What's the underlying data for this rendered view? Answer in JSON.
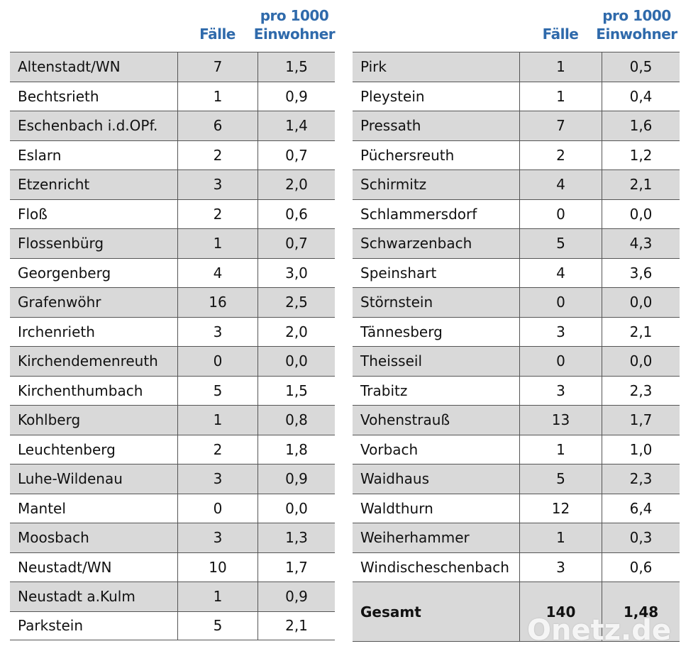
{
  "left": {
    "header": {
      "col1": "Fälle",
      "col2_line1": "pro 1000",
      "col2_line2": "Einwohner"
    },
    "rows": [
      [
        "Altenstadt/WN",
        7,
        "1,5"
      ],
      [
        "Bechtsrieth",
        1,
        "0,9"
      ],
      [
        "Eschenbach i.d.OPf.",
        6,
        "1,4"
      ],
      [
        "Eslarn",
        2,
        "0,7"
      ],
      [
        "Etzenricht",
        3,
        "2,0"
      ],
      [
        "Floß",
        2,
        "0,6"
      ],
      [
        "Flossenbürg",
        1,
        "0,7"
      ],
      [
        "Georgenberg",
        4,
        "3,0"
      ],
      [
        "Grafenwöhr",
        16,
        "2,5"
      ],
      [
        "Irchenrieth",
        3,
        "2,0"
      ],
      [
        "Kirchendemenreuth",
        0,
        "0,0"
      ],
      [
        "Kirchenthumbach",
        5,
        "1,5"
      ],
      [
        "Kohlberg",
        1,
        "0,8"
      ],
      [
        "Leuchtenberg",
        2,
        "1,8"
      ],
      [
        "Luhe-Wildenau",
        3,
        "0,9"
      ],
      [
        "Mantel",
        0,
        "0,0"
      ],
      [
        "Moosbach",
        3,
        "1,3"
      ],
      [
        "Neustadt/WN",
        10,
        "1,7"
      ],
      [
        "Neustadt a.Kulm",
        1,
        "0,9"
      ],
      [
        "Parkstein",
        5,
        "2,1"
      ]
    ]
  },
  "right": {
    "header": {
      "col1": "Fälle",
      "col2_line1": "pro 1000",
      "col2_line2": "Einwohner"
    },
    "rows": [
      [
        "Pirk",
        1,
        "0,5"
      ],
      [
        "Pleystein",
        1,
        "0,4"
      ],
      [
        "Pressath",
        7,
        "1,6"
      ],
      [
        "Püchersreuth",
        2,
        "1,2"
      ],
      [
        "Schirmitz",
        4,
        "2,1"
      ],
      [
        "Schlammersdorf",
        0,
        "0,0"
      ],
      [
        "Schwarzenbach",
        5,
        "4,3"
      ],
      [
        "Speinshart",
        4,
        "3,6"
      ],
      [
        "Störnstein",
        0,
        "0,0"
      ],
      [
        "Tännesberg",
        3,
        "2,1"
      ],
      [
        "Theisseil",
        0,
        "0,0"
      ],
      [
        "Trabitz",
        3,
        "2,3"
      ],
      [
        "Vohenstrauß",
        13,
        "1,7"
      ],
      [
        "Vorbach",
        1,
        "1,0"
      ],
      [
        "Waidhaus",
        5,
        "2,3"
      ],
      [
        "Waldthurn",
        12,
        "6,4"
      ],
      [
        "Weiherhammer",
        1,
        "0,3"
      ],
      [
        "Windischeschenbach",
        3,
        "0,6"
      ]
    ],
    "total": [
      "Gesamt",
      140,
      "1,48"
    ]
  },
  "watermark": "Onetz.de"
}
